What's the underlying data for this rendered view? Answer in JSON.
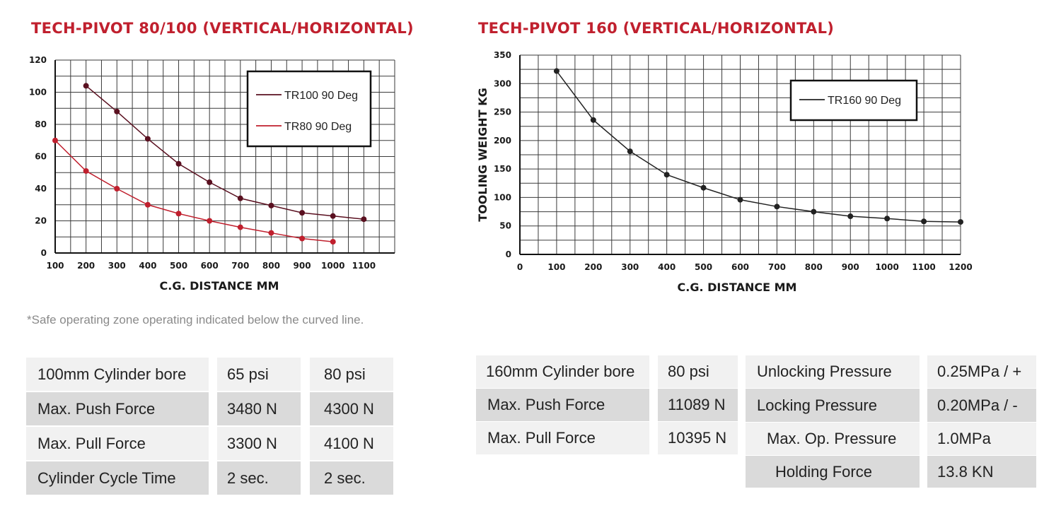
{
  "chart_data": [
    {
      "type": "line",
      "title": "TECH-PIVOT 80/100 (VERTICAL/HORIZONTAL)",
      "xlabel": "C.G. DISTANCE MM",
      "ylabel": "",
      "xlim": [
        100,
        1200
      ],
      "ylim": [
        0,
        120
      ],
      "xticks": [
        100,
        200,
        300,
        400,
        500,
        600,
        700,
        800,
        900,
        1000,
        1100
      ],
      "yticks": [
        0,
        20,
        40,
        60,
        80,
        100,
        120
      ],
      "grid": true,
      "legend_position": "top-right",
      "series": [
        {
          "name": "TR100 90 Deg",
          "color": "#5a1020",
          "x": [
            200,
            300,
            400,
            500,
            600,
            700,
            800,
            900,
            1000,
            1100
          ],
          "y": [
            104,
            88,
            71,
            55.5,
            44,
            34,
            29.5,
            25,
            23,
            21
          ]
        },
        {
          "name": "TR80 90 Deg",
          "color": "#c01f2d",
          "x": [
            100,
            200,
            300,
            400,
            500,
            600,
            700,
            800,
            900,
            1000
          ],
          "y": [
            70,
            51,
            40,
            30,
            24.5,
            20,
            16,
            12.5,
            9,
            7
          ]
        }
      ]
    },
    {
      "type": "line",
      "title": "TECH-PIVOT 160 (VERTICAL/HORIZONTAL)",
      "xlabel": "C.G. DISTANCE MM",
      "ylabel": "TOOLING WEIGHT KG",
      "xlim": [
        0,
        1200
      ],
      "ylim": [
        0,
        350
      ],
      "xticks": [
        0,
        100,
        200,
        300,
        400,
        500,
        600,
        700,
        800,
        900,
        1000,
        1100,
        1200
      ],
      "yticks": [
        0,
        50,
        100,
        150,
        200,
        250,
        300,
        350
      ],
      "grid": true,
      "legend_position": "top-right",
      "series": [
        {
          "name": "TR160 90 Deg",
          "color": "#222222",
          "x": [
            100,
            200,
            300,
            400,
            500,
            600,
            700,
            800,
            900,
            1000,
            1100,
            1200
          ],
          "y": [
            322,
            236,
            181,
            140,
            117,
            96,
            84,
            75,
            67,
            63,
            58,
            57
          ]
        }
      ]
    }
  ],
  "footnote": "*Safe operating zone operating indicated below the curved line.",
  "table1": {
    "rows": [
      [
        "100mm Cylinder bore",
        "65 psi",
        "80 psi"
      ],
      [
        "Max. Push Force",
        "3480 N",
        "4300 N"
      ],
      [
        "Max. Pull Force",
        "3300 N",
        "4100 N"
      ],
      [
        "Cylinder Cycle Time",
        "2 sec.",
        "2 sec."
      ]
    ]
  },
  "table2": {
    "rows": [
      [
        "160mm Cylinder bore",
        "80 psi"
      ],
      [
        "Max. Push Force",
        "11089 N"
      ],
      [
        "Max. Pull Force",
        "10395 N"
      ]
    ]
  },
  "table3": {
    "rows": [
      [
        "Unlocking Pressure",
        "0.25MPa / +"
      ],
      [
        "Locking Pressure",
        "0.20MPa / -"
      ],
      [
        "Max. Op. Pressure",
        "1.0MPa"
      ],
      [
        "Holding Force",
        "13.8 KN"
      ]
    ]
  },
  "colors": {
    "title": "#c0202e",
    "tr100": "#5a1020",
    "tr80": "#c01f2d",
    "tr160": "#222222",
    "row_light": "#f1f1f1",
    "row_dark": "#dadada"
  }
}
